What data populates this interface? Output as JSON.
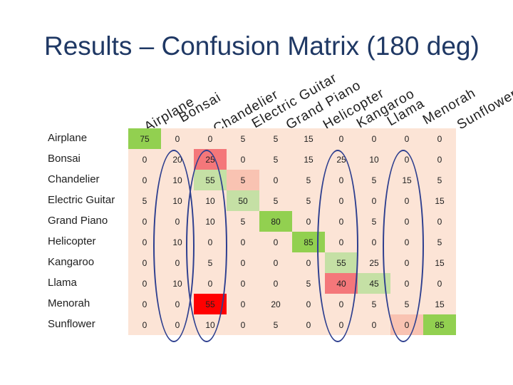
{
  "title": "Results – Confusion Matrix (180 deg)",
  "chart_data": {
    "type": "heatmap",
    "title": "Results – Confusion Matrix (180 deg)",
    "columns": [
      "Airplane",
      "Bonsai",
      "Chandelier",
      "Electric Guitar",
      "Grand Piano",
      "Helicopter",
      "Kangaroo",
      "Llama",
      "Menorah",
      "Sunflower"
    ],
    "rows": [
      "Airplane",
      "Bonsai",
      "Chandelier",
      "Electric Guitar",
      "Grand Piano",
      "Helicopter",
      "Kangaroo",
      "Llama",
      "Menorah",
      "Sunflower"
    ],
    "values": [
      [
        75,
        0,
        0,
        5,
        5,
        15,
        0,
        0,
        0,
        0
      ],
      [
        0,
        20,
        25,
        0,
        5,
        15,
        25,
        10,
        0,
        0
      ],
      [
        0,
        10,
        55,
        5,
        0,
        5,
        0,
        5,
        15,
        5
      ],
      [
        5,
        10,
        10,
        50,
        5,
        5,
        0,
        0,
        0,
        15
      ],
      [
        0,
        0,
        10,
        5,
        80,
        0,
        0,
        5,
        0,
        0
      ],
      [
        0,
        10,
        0,
        0,
        0,
        85,
        0,
        0,
        0,
        5
      ],
      [
        0,
        0,
        5,
        0,
        0,
        0,
        55,
        25,
        0,
        15
      ],
      [
        0,
        10,
        0,
        0,
        0,
        5,
        40,
        45,
        0,
        0
      ],
      [
        0,
        0,
        55,
        0,
        20,
        0,
        0,
        5,
        5,
        15
      ],
      [
        0,
        0,
        10,
        0,
        5,
        0,
        0,
        0,
        0,
        85
      ]
    ],
    "highlighted_cells": [
      [
        1,
        2
      ],
      [
        2,
        3
      ],
      [
        7,
        6
      ],
      [
        8,
        2
      ],
      [
        9,
        8
      ]
    ],
    "circled_columns": [
      "Bonsai",
      "Chandelier",
      "Kangaroo",
      "Menorah"
    ],
    "colors": {
      "diag_high": "#92d050",
      "diag_mid": "#c5e0a5",
      "red_high": "#ff0000",
      "red_mid": "#f4777a",
      "red_low": "#f9c3b2",
      "neutral": "#fce4d6"
    }
  }
}
